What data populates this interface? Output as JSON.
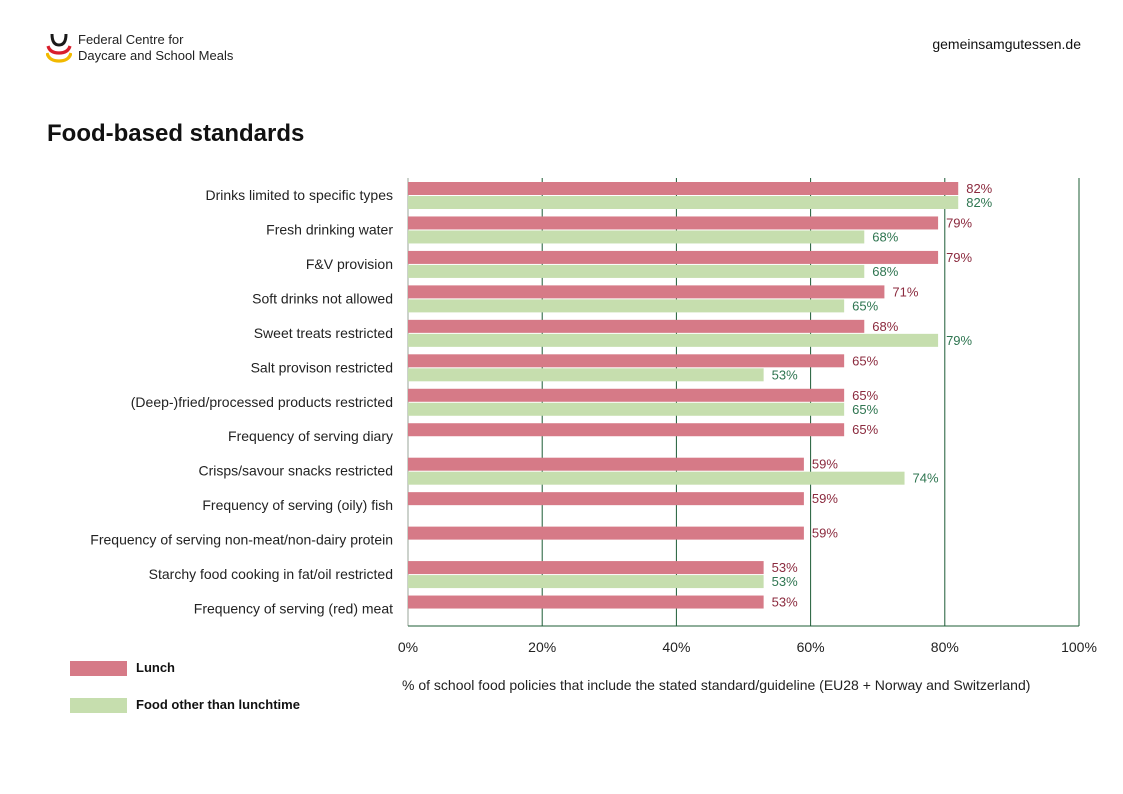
{
  "header": {
    "org_line1": "Federal Centre for",
    "org_line2": "Daycare and School Meals",
    "website": "gemeinsamgutessen.de"
  },
  "colors": {
    "lunch": "#d67a87",
    "other": "#c6deae",
    "lunch_label": "#8b2a3e",
    "other_label": "#2e7550",
    "grid": "#1d5c36",
    "logo_black": "#1a1a1a",
    "logo_red": "#d81e2c",
    "logo_gold": "#f2b900"
  },
  "chart_data": {
    "type": "bar",
    "orientation": "horizontal",
    "title": "Food-based standards",
    "xlabel": "% of school food policies that include the stated standard/guideline (EU28 + Norway and Switzerland)",
    "xlim": [
      0,
      100
    ],
    "xticks": [
      "0%",
      "20%",
      "40%",
      "60%",
      "80%",
      "100%"
    ],
    "grid": true,
    "legend_position": "bottom-left",
    "categories": [
      "Drinks limited to specific types",
      "Fresh drinking water",
      "F&V provision",
      "Soft drinks not allowed",
      "Sweet treats restricted",
      "Salt provison restricted",
      "(Deep-)fried/processed products restricted",
      "Frequency of serving diary",
      "Crisps/savour snacks restricted",
      "Frequency of serving (oily) fish",
      "Frequency of serving non-meat/non-dairy protein",
      "Starchy food cooking in fat/oil restricted",
      "Frequency of serving (red) meat"
    ],
    "series": [
      {
        "name": "Lunch",
        "values": [
          82,
          79,
          79,
          71,
          68,
          65,
          65,
          65,
          59,
          59,
          59,
          53,
          53
        ]
      },
      {
        "name": "Food other than lunchtime",
        "values": [
          82,
          68,
          68,
          65,
          79,
          53,
          65,
          null,
          74,
          null,
          null,
          53,
          null
        ]
      }
    ]
  }
}
